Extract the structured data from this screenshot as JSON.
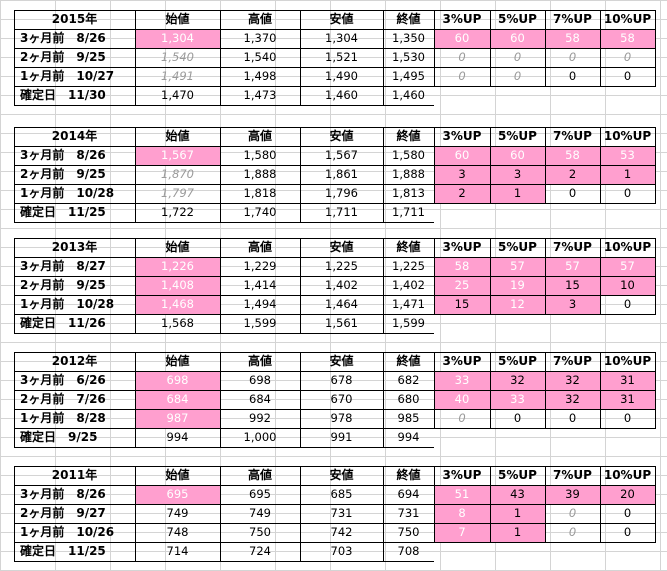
{
  "colors": {
    "highlight": "#ff9fcf",
    "grid": "#d4d4d4",
    "border": "#000000"
  },
  "column_headers": [
    "始値",
    "高値",
    "安値",
    "終値",
    "3%UP",
    "5%UP",
    "7%UP",
    "10%UP"
  ],
  "blocks": [
    {
      "year": "2015年",
      "rows": [
        {
          "label": "3ヶ月前　8/26",
          "values": [
            "1,304",
            "1,370",
            "1,304",
            "1,350",
            "60",
            "60",
            "58",
            "58"
          ],
          "pink": [
            true,
            false,
            false,
            false,
            true,
            true,
            true,
            true
          ],
          "italic": [
            false,
            false,
            false,
            false,
            false,
            false,
            false,
            false
          ]
        },
        {
          "label": "2ヶ月前　9/25",
          "values": [
            "1,540",
            "1,540",
            "1,521",
            "1,530",
            "0",
            "0",
            "0",
            "0"
          ],
          "pink": [
            false,
            false,
            false,
            false,
            false,
            false,
            false,
            false
          ],
          "italic": [
            true,
            false,
            false,
            false,
            true,
            true,
            true,
            true
          ]
        },
        {
          "label": "1ヶ月前　10/27",
          "values": [
            "1,491",
            "1,498",
            "1,490",
            "1,495",
            "0",
            "0",
            "0",
            "0"
          ],
          "pink": [
            false,
            false,
            false,
            false,
            false,
            false,
            false,
            false
          ],
          "italic": [
            true,
            false,
            false,
            false,
            true,
            true,
            false,
            false
          ]
        },
        {
          "label": "確定日　11/30",
          "values": [
            "1,470",
            "1,473",
            "1,460",
            "1,460",
            "",
            "",
            "",
            ""
          ],
          "pink": [
            false,
            false,
            false,
            false,
            false,
            false,
            false,
            false
          ],
          "italic": [
            false,
            false,
            false,
            false,
            false,
            false,
            false,
            false
          ]
        }
      ]
    },
    {
      "year": "2014年",
      "rows": [
        {
          "label": "3ヶ月前　8/26",
          "values": [
            "1,567",
            "1,580",
            "1,567",
            "1,580",
            "60",
            "60",
            "58",
            "53"
          ],
          "pink": [
            true,
            false,
            false,
            false,
            true,
            true,
            true,
            true
          ],
          "italic": [
            false,
            false,
            false,
            false,
            false,
            false,
            false,
            false
          ]
        },
        {
          "label": "2ヶ月前　9/25",
          "values": [
            "1,870",
            "1,888",
            "1,861",
            "1,888",
            "3",
            "3",
            "2",
            "1"
          ],
          "pink": [
            false,
            false,
            false,
            false,
            true,
            true,
            true,
            true
          ],
          "italic": [
            true,
            false,
            false,
            false,
            false,
            false,
            false,
            false
          ]
        },
        {
          "label": "1ヶ月前　10/28",
          "values": [
            "1,797",
            "1,818",
            "1,796",
            "1,813",
            "2",
            "1",
            "0",
            "0"
          ],
          "pink": [
            false,
            false,
            false,
            false,
            true,
            true,
            false,
            false
          ],
          "italic": [
            true,
            false,
            false,
            false,
            false,
            false,
            false,
            false
          ]
        },
        {
          "label": "確定日　11/25",
          "values": [
            "1,722",
            "1,740",
            "1,711",
            "1,711",
            "",
            "",
            "",
            ""
          ],
          "pink": [
            false,
            false,
            false,
            false,
            false,
            false,
            false,
            false
          ],
          "italic": [
            false,
            false,
            false,
            false,
            false,
            false,
            false,
            false
          ]
        }
      ]
    },
    {
      "year": "2013年",
      "rows": [
        {
          "label": "3ヶ月前　8/27",
          "values": [
            "1,226",
            "1,229",
            "1,225",
            "1,225",
            "58",
            "57",
            "57",
            "57"
          ],
          "pink": [
            true,
            false,
            false,
            false,
            true,
            true,
            true,
            true
          ],
          "italic": [
            false,
            false,
            false,
            false,
            false,
            false,
            false,
            false
          ]
        },
        {
          "label": "2ヶ月前　9/25",
          "values": [
            "1,408",
            "1,414",
            "1,402",
            "1,402",
            "25",
            "19",
            "15",
            "10"
          ],
          "pink": [
            true,
            false,
            false,
            false,
            true,
            true,
            true,
            true
          ],
          "italic": [
            false,
            false,
            false,
            false,
            false,
            false,
            false,
            false
          ]
        },
        {
          "label": "1ヶ月前　10/28",
          "values": [
            "1,468",
            "1,494",
            "1,464",
            "1,471",
            "15",
            "12",
            "3",
            "0"
          ],
          "pink": [
            true,
            false,
            false,
            false,
            true,
            true,
            true,
            false
          ],
          "italic": [
            false,
            false,
            false,
            false,
            false,
            false,
            false,
            false
          ]
        },
        {
          "label": "確定日　11/26",
          "values": [
            "1,568",
            "1,599",
            "1,561",
            "1,599",
            "",
            "",
            "",
            ""
          ],
          "pink": [
            false,
            false,
            false,
            false,
            false,
            false,
            false,
            false
          ],
          "italic": [
            false,
            false,
            false,
            false,
            false,
            false,
            false,
            false
          ]
        }
      ]
    },
    {
      "year": "2012年",
      "rows": [
        {
          "label": "3ヶ月前　6/26",
          "values": [
            "698",
            "698",
            "678",
            "682",
            "33",
            "32",
            "32",
            "31"
          ],
          "pink": [
            true,
            false,
            false,
            false,
            true,
            true,
            true,
            true
          ],
          "italic": [
            false,
            false,
            false,
            false,
            false,
            false,
            false,
            false
          ]
        },
        {
          "label": "2ヶ月前　7/26",
          "values": [
            "684",
            "684",
            "670",
            "680",
            "40",
            "33",
            "32",
            "31"
          ],
          "pink": [
            true,
            false,
            false,
            false,
            true,
            true,
            true,
            true
          ],
          "italic": [
            false,
            false,
            false,
            false,
            false,
            false,
            false,
            false
          ]
        },
        {
          "label": "1ヶ月前　8/28",
          "values": [
            "987",
            "992",
            "978",
            "985",
            "0",
            "0",
            "0",
            "0"
          ],
          "pink": [
            true,
            false,
            false,
            false,
            false,
            false,
            false,
            false
          ],
          "italic": [
            false,
            false,
            false,
            false,
            true,
            false,
            false,
            false
          ]
        },
        {
          "label": "確定日　9/25",
          "values": [
            "994",
            "1,000",
            "991",
            "994",
            "",
            "",
            "",
            ""
          ],
          "pink": [
            false,
            false,
            false,
            false,
            false,
            false,
            false,
            false
          ],
          "italic": [
            false,
            false,
            false,
            false,
            false,
            false,
            false,
            false
          ]
        }
      ]
    },
    {
      "year": "2011年",
      "rows": [
        {
          "label": "3ヶ月前　8/26",
          "values": [
            "695",
            "695",
            "685",
            "694",
            "51",
            "43",
            "39",
            "20"
          ],
          "pink": [
            true,
            false,
            false,
            false,
            true,
            true,
            true,
            true
          ],
          "italic": [
            false,
            false,
            false,
            false,
            false,
            false,
            false,
            false
          ]
        },
        {
          "label": "2ヶ月前　9/27",
          "values": [
            "749",
            "749",
            "731",
            "731",
            "8",
            "1",
            "0",
            "0"
          ],
          "pink": [
            false,
            false,
            false,
            false,
            true,
            true,
            false,
            false
          ],
          "italic": [
            false,
            false,
            false,
            false,
            false,
            false,
            true,
            false
          ]
        },
        {
          "label": "1ヶ月前　10/26",
          "values": [
            "748",
            "750",
            "742",
            "750",
            "7",
            "1",
            "0",
            "0"
          ],
          "pink": [
            false,
            false,
            false,
            false,
            true,
            true,
            false,
            false
          ],
          "italic": [
            false,
            false,
            false,
            false,
            false,
            false,
            true,
            false
          ]
        },
        {
          "label": "確定日　11/25",
          "values": [
            "714",
            "724",
            "703",
            "708",
            "",
            "",
            "",
            ""
          ],
          "pink": [
            false,
            false,
            false,
            false,
            false,
            false,
            false,
            false
          ],
          "italic": [
            false,
            false,
            false,
            false,
            false,
            false,
            false,
            false
          ]
        }
      ]
    }
  ]
}
